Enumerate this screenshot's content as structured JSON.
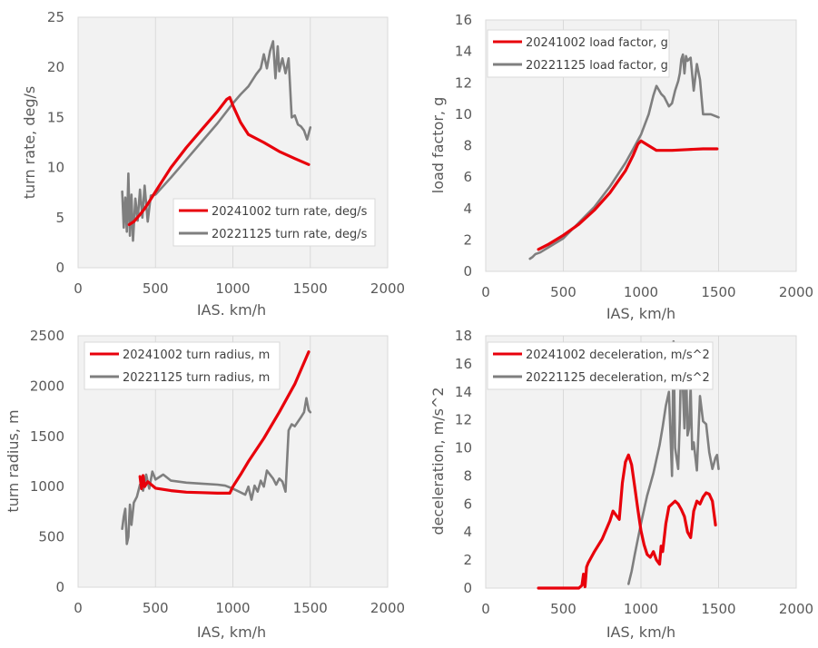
{
  "colors": {
    "red": "#e8000b",
    "gray": "#7f7f7f",
    "plot_bg": "#f2f2f2",
    "grid": "#d9d9d9",
    "text": "#595959"
  },
  "chart_data": [
    {
      "type": "line",
      "xlabel": "IAS. km/h",
      "ylabel": "turn rate, deg/s",
      "xlim": [
        0,
        2000
      ],
      "ylim": [
        0,
        25
      ],
      "xticks": [
        0,
        500,
        1000,
        1500,
        2000
      ],
      "yticks": [
        0,
        5,
        10,
        15,
        20,
        25
      ],
      "xtick_labels": [
        "0",
        "500",
        "1000",
        "1500",
        "2000"
      ],
      "ytick_labels": [
        "0",
        "5",
        "10",
        "15",
        "20",
        "25"
      ],
      "grid": "vertical",
      "legend": "lower-right",
      "series": [
        {
          "name": "20241002 turn rate, deg/s",
          "color": "#e8000b",
          "x": [
            330,
            360,
            400,
            430,
            460,
            500,
            550,
            600,
            700,
            800,
            900,
            960,
            980,
            1000,
            1050,
            1100,
            1200,
            1300,
            1400,
            1490
          ],
          "y": [
            4.3,
            4.6,
            5.3,
            5.9,
            6.6,
            7.6,
            8.8,
            10.0,
            12.0,
            13.8,
            15.6,
            16.8,
            17.0,
            16.2,
            14.5,
            13.3,
            12.5,
            11.6,
            10.9,
            10.3
          ]
        },
        {
          "name": "20221125 turn rate, deg/s",
          "color": "#7f7f7f",
          "x": [
            285,
            295,
            305,
            315,
            325,
            335,
            345,
            355,
            370,
            385,
            400,
            415,
            430,
            450,
            470,
            500,
            600,
            700,
            800,
            900,
            1000,
            1050,
            1100,
            1150,
            1180,
            1200,
            1220,
            1240,
            1260,
            1275,
            1290,
            1300,
            1320,
            1340,
            1360,
            1380,
            1400,
            1420,
            1440,
            1460,
            1480,
            1500
          ],
          "y": [
            7.6,
            4.0,
            7.0,
            3.6,
            9.4,
            3.2,
            7.3,
            2.7,
            6.9,
            4.7,
            7.8,
            5.0,
            8.2,
            4.6,
            7.2,
            7.3,
            9.0,
            10.8,
            12.6,
            14.4,
            16.4,
            17.3,
            18.1,
            19.3,
            19.9,
            21.3,
            19.9,
            21.6,
            22.6,
            18.9,
            22.1,
            19.6,
            20.9,
            19.4,
            20.9,
            15.0,
            15.2,
            14.3,
            14.1,
            13.7,
            12.8,
            14.0
          ]
        }
      ]
    },
    {
      "type": "line",
      "xlabel": "IAS, km/h",
      "ylabel": "load factor, g",
      "xlim": [
        0,
        2000
      ],
      "ylim": [
        0,
        16
      ],
      "xticks": [
        0,
        500,
        1000,
        1500,
        2000
      ],
      "yticks": [
        0,
        2,
        4,
        6,
        8,
        10,
        12,
        14,
        16
      ],
      "xtick_labels": [
        "0",
        "500",
        "1000",
        "1500",
        "2000"
      ],
      "ytick_labels": [
        "0",
        "2",
        "4",
        "6",
        "8",
        "10",
        "12",
        "14",
        "16"
      ],
      "grid": "vertical",
      "legend": "upper-left",
      "series": [
        {
          "name": "20241002 load factor, g",
          "color": "#e8000b",
          "x": [
            340,
            400,
            500,
            600,
            700,
            800,
            900,
            950,
            980,
            1000,
            1050,
            1100,
            1200,
            1300,
            1400,
            1490
          ],
          "y": [
            1.4,
            1.7,
            2.3,
            3.0,
            3.9,
            5.0,
            6.4,
            7.4,
            8.1,
            8.3,
            8.0,
            7.7,
            7.7,
            7.75,
            7.8,
            7.8
          ]
        },
        {
          "name": "20221125 load factor, g",
          "color": "#7f7f7f",
          "x": [
            285,
            300,
            320,
            350,
            400,
            500,
            600,
            700,
            800,
            900,
            950,
            1000,
            1050,
            1080,
            1100,
            1130,
            1150,
            1180,
            1200,
            1220,
            1240,
            1250,
            1260,
            1270,
            1280,
            1290,
            1300,
            1320,
            1340,
            1360,
            1380,
            1400,
            1450,
            1500
          ],
          "y": [
            0.8,
            0.9,
            1.1,
            1.2,
            1.5,
            2.1,
            3.1,
            4.1,
            5.4,
            6.9,
            7.8,
            8.7,
            10.0,
            11.2,
            11.8,
            11.3,
            11.1,
            10.5,
            10.7,
            11.5,
            12.1,
            12.6,
            13.5,
            13.8,
            12.6,
            13.7,
            13.4,
            13.6,
            11.5,
            13.2,
            12.2,
            10.0,
            10.0,
            9.8
          ]
        }
      ]
    },
    {
      "type": "line",
      "xlabel": "IAS, km/h",
      "ylabel": "turn radius, m",
      "xlim": [
        0,
        2000
      ],
      "ylim": [
        0,
        2500
      ],
      "xticks": [
        0,
        500,
        1000,
        1500,
        2000
      ],
      "yticks": [
        0,
        500,
        1000,
        1500,
        2000,
        2500
      ],
      "xtick_labels": [
        "0",
        "500",
        "1000",
        "1500",
        "2000"
      ],
      "ytick_labels": [
        "0",
        "500",
        "1000",
        "1500",
        "2000",
        "2500"
      ],
      "grid": "vertical",
      "legend": "upper-left",
      "series": [
        {
          "name": "20241002 turn radius, m",
          "color": "#e8000b",
          "x": [
            400,
            410,
            420,
            430,
            450,
            500,
            600,
            700,
            800,
            900,
            980,
            1000,
            1050,
            1100,
            1200,
            1300,
            1400,
            1490
          ],
          "y": [
            1100,
            980,
            1110,
            1000,
            1050,
            985,
            960,
            945,
            940,
            935,
            935,
            1000,
            1120,
            1250,
            1480,
            1740,
            2020,
            2340
          ]
        },
        {
          "name": "20221125 turn radius, m",
          "color": "#7f7f7f",
          "x": [
            285,
            295,
            305,
            315,
            325,
            335,
            345,
            360,
            380,
            400,
            420,
            440,
            460,
            480,
            500,
            550,
            600,
            700,
            800,
            900,
            950,
            1000,
            1040,
            1080,
            1100,
            1120,
            1140,
            1160,
            1180,
            1200,
            1220,
            1240,
            1260,
            1280,
            1300,
            1320,
            1340,
            1360,
            1380,
            1400,
            1440,
            1460,
            1475,
            1490,
            1500
          ],
          "y": [
            580,
            700,
            780,
            430,
            500,
            820,
            620,
            840,
            900,
            1020,
            960,
            1120,
            980,
            1150,
            1070,
            1120,
            1060,
            1040,
            1030,
            1020,
            1010,
            980,
            950,
            920,
            1000,
            870,
            1010,
            950,
            1060,
            1000,
            1160,
            1120,
            1080,
            1020,
            1080,
            1050,
            950,
            1560,
            1620,
            1600,
            1690,
            1740,
            1880,
            1760,
            1740
          ]
        }
      ]
    },
    {
      "type": "line",
      "xlabel": "IAS, km/h",
      "ylabel": "deceleration, m/s^2",
      "xlim": [
        0,
        2000
      ],
      "ylim": [
        0,
        18
      ],
      "xticks": [
        0,
        500,
        1000,
        1500,
        2000
      ],
      "yticks": [
        0,
        2,
        4,
        6,
        8,
        10,
        12,
        14,
        16,
        18
      ],
      "xtick_labels": [
        "0",
        "500",
        "1000",
        "1500",
        "2000"
      ],
      "ytick_labels": [
        "0",
        "2",
        "4",
        "6",
        "8",
        "10",
        "12",
        "14",
        "16",
        "18"
      ],
      "grid": "vertical",
      "legend": "upper-left",
      "series": [
        {
          "name": "20241002 deceleration, m/s^2",
          "color": "#e8000b",
          "x": [
            340,
            400,
            500,
            600,
            620,
            630,
            640,
            650,
            660,
            680,
            700,
            750,
            800,
            820,
            840,
            860,
            880,
            900,
            920,
            940,
            960,
            980,
            1000,
            1020,
            1040,
            1060,
            1080,
            1100,
            1120,
            1130,
            1140,
            1160,
            1180,
            1200,
            1220,
            1240,
            1260,
            1280,
            1300,
            1320,
            1340,
            1360,
            1380,
            1400,
            1420,
            1440,
            1460,
            1480
          ],
          "y": [
            0,
            0,
            0,
            0,
            0.2,
            1.0,
            0.1,
            1.5,
            1.8,
            2.2,
            2.6,
            3.5,
            4.8,
            5.5,
            5.2,
            4.9,
            7.5,
            9.0,
            9.5,
            8.8,
            7.2,
            5.6,
            4.1,
            3.1,
            2.4,
            2.2,
            2.6,
            2.0,
            1.7,
            3.0,
            2.6,
            4.6,
            5.8,
            6.0,
            6.2,
            6.0,
            5.6,
            5.1,
            4.0,
            3.6,
            5.5,
            6.2,
            6.0,
            6.5,
            6.8,
            6.7,
            6.2,
            4.5
          ]
        },
        {
          "name": "20221125 deceleration, m/s^2",
          "color": "#7f7f7f",
          "x": [
            920,
            940,
            960,
            980,
            1000,
            1020,
            1040,
            1060,
            1080,
            1100,
            1120,
            1140,
            1160,
            1180,
            1200,
            1210,
            1220,
            1240,
            1250,
            1260,
            1280,
            1290,
            1300,
            1310,
            1320,
            1330,
            1340,
            1360,
            1380,
            1400,
            1420,
            1440,
            1460,
            1480,
            1490,
            1500
          ],
          "y": [
            0.3,
            1.2,
            2.4,
            3.5,
            4.6,
            5.6,
            6.6,
            7.4,
            8.2,
            9.2,
            10.2,
            11.5,
            13.0,
            14.0,
            8.0,
            17.6,
            10.0,
            8.5,
            12.0,
            17.0,
            11.4,
            16.2,
            10.9,
            11.4,
            14.4,
            9.9,
            10.4,
            8.4,
            13.7,
            11.9,
            11.7,
            9.7,
            8.5,
            9.3,
            9.5,
            8.5
          ]
        }
      ]
    }
  ]
}
